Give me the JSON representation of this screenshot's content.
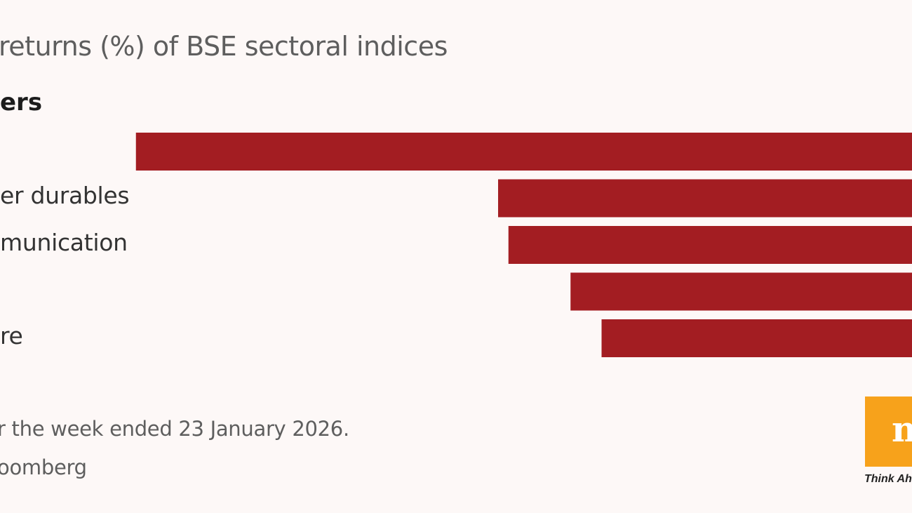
{
  "chart_data": {
    "type": "bar",
    "orientation": "horizontal",
    "title": "returns (%) of BSE sectoral indices",
    "section_label": "ers",
    "categories": [
      "",
      "er durables",
      "munication",
      "",
      "re"
    ],
    "values": [
      7.5,
      4.0,
      3.9,
      3.3,
      3.0
    ],
    "xlim": [
      0,
      7.5
    ],
    "bar_color": "#a31d22",
    "note": "r the week ended 23 January 2026.",
    "source": "oomberg"
  },
  "brand": {
    "logo_text": "m",
    "tagline": "Think Ah",
    "logo_color": "#f7a21b"
  }
}
